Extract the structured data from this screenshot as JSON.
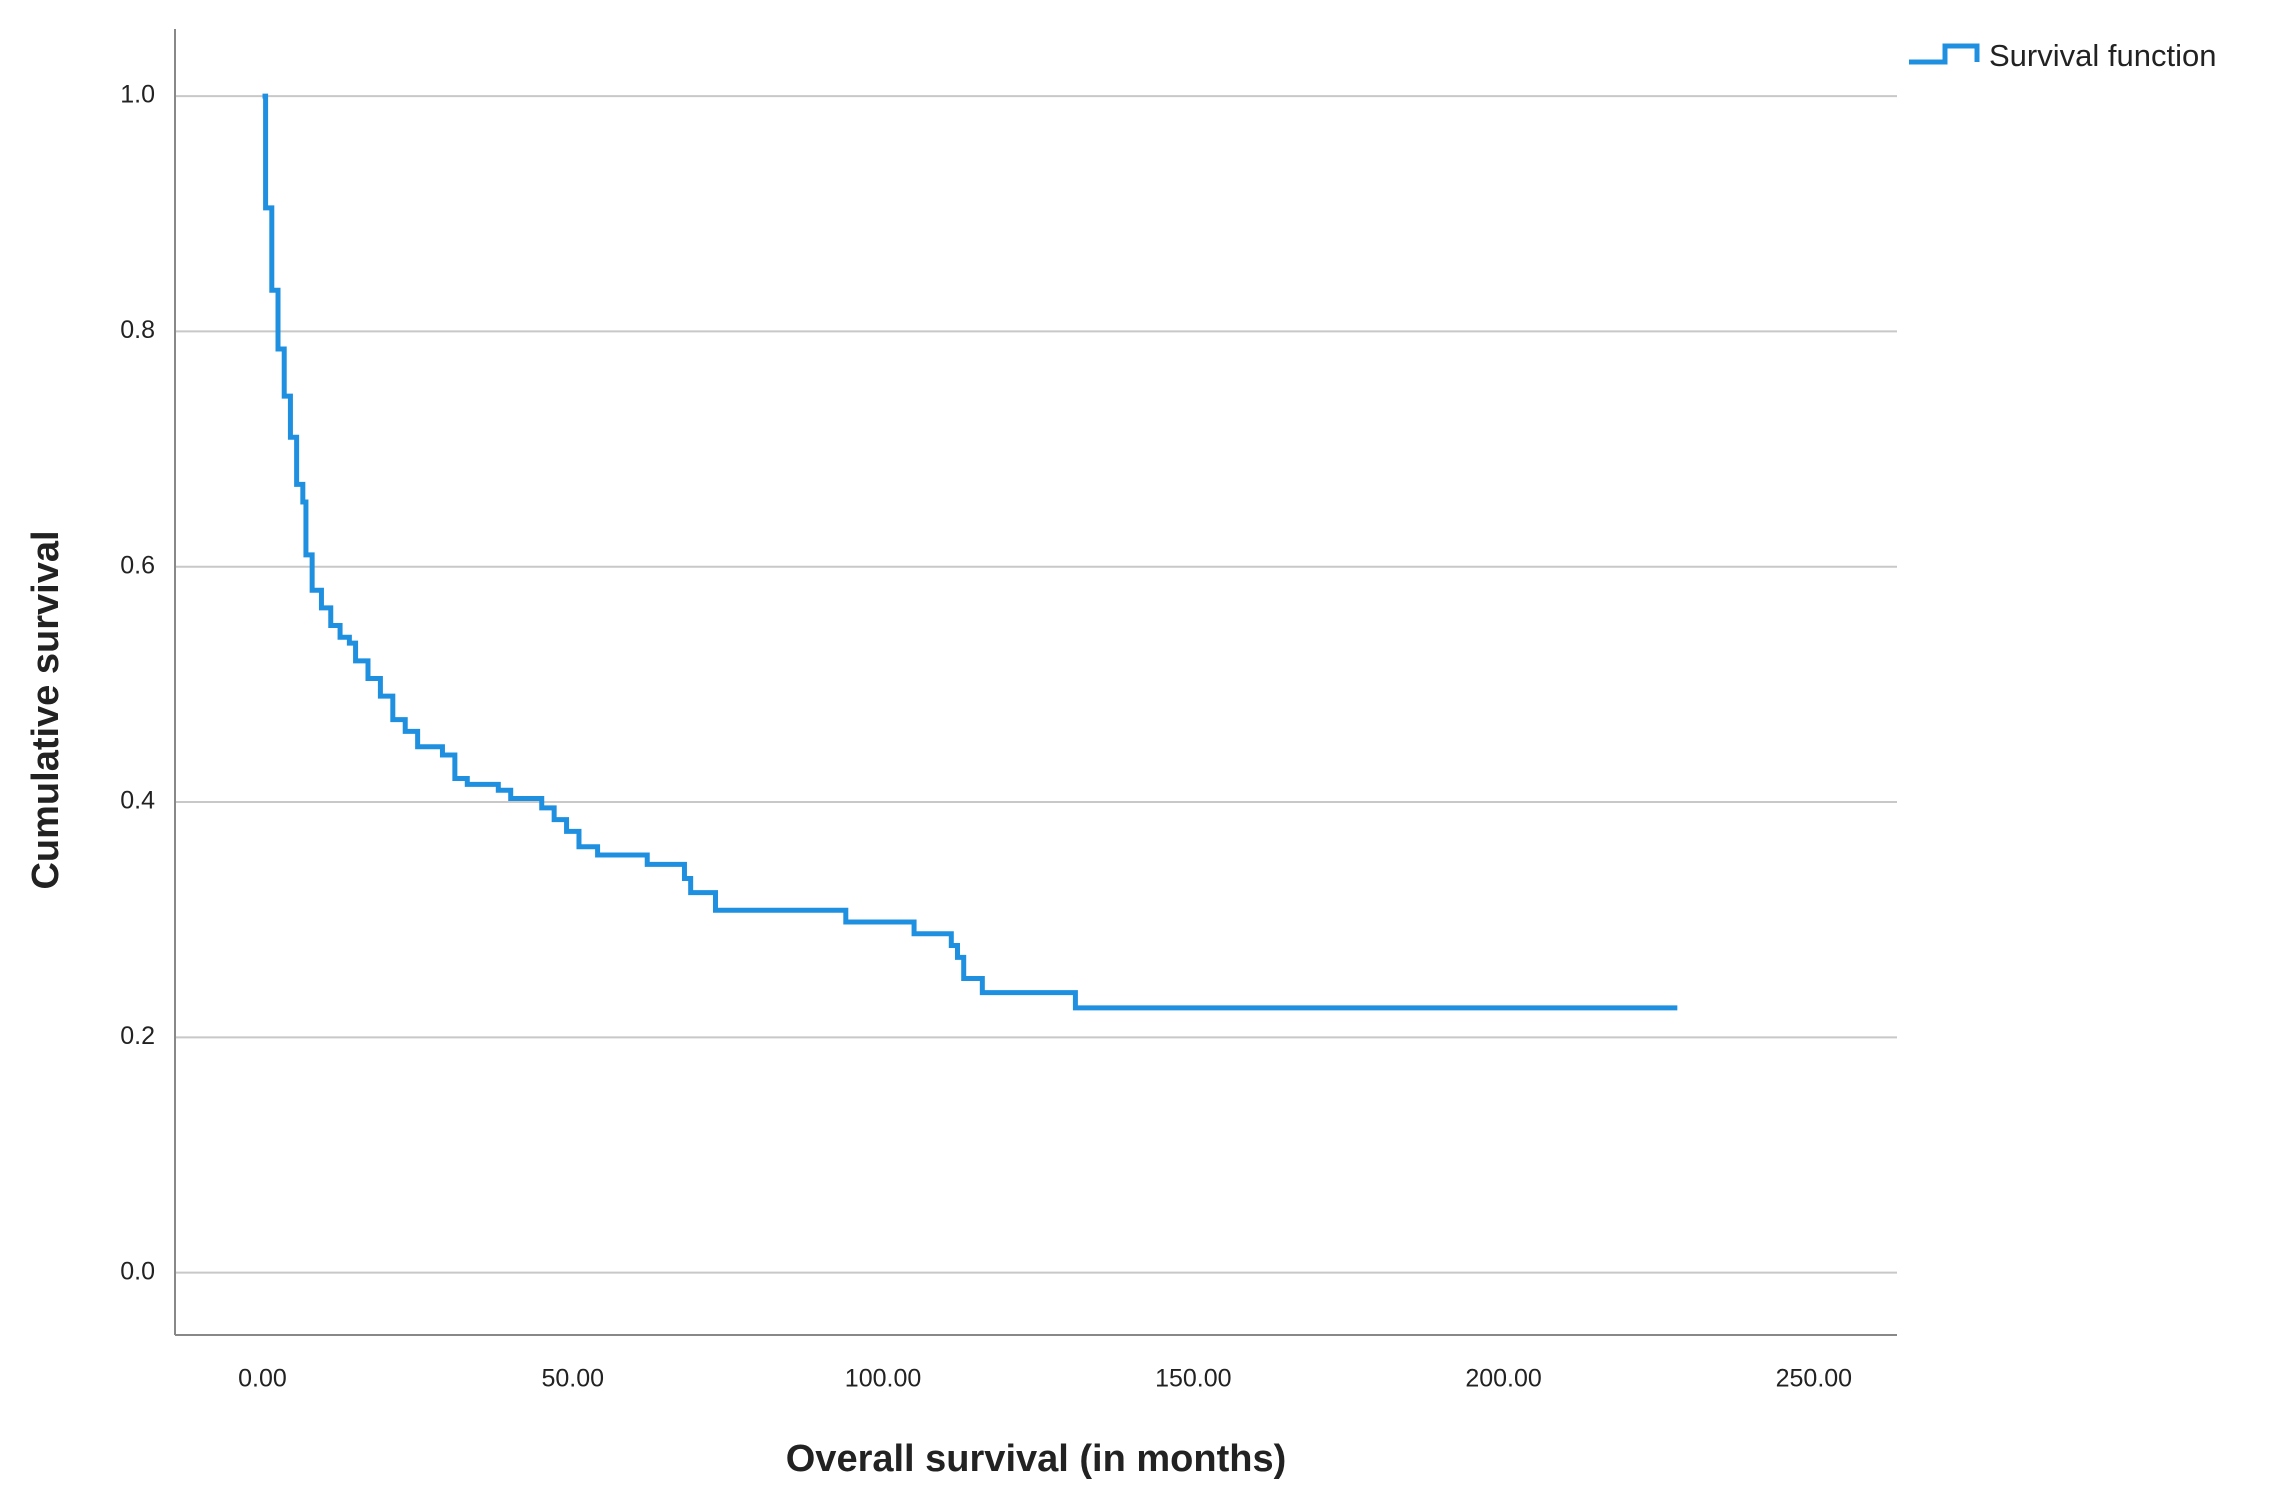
{
  "chart_data": {
    "type": "step",
    "x_label": "Overall survival (in months)",
    "y_label": "Cumulative survival",
    "series": [
      {
        "name": "Survival function",
        "color": "#1f90e0",
        "x": [
          0,
          0.5,
          1.5,
          2.5,
          3.5,
          4.5,
          5.5,
          6.5,
          7,
          8,
          9.5,
          11,
          12.5,
          14,
          15,
          17,
          19,
          21,
          23,
          25,
          29,
          31,
          33,
          38,
          40,
          45,
          47,
          49,
          51,
          54,
          62,
          68,
          69,
          73,
          94,
          105,
          111,
          112,
          113,
          116,
          131,
          228
        ],
        "values": [
          1.0,
          0.905,
          0.835,
          0.785,
          0.745,
          0.71,
          0.67,
          0.655,
          0.61,
          0.58,
          0.565,
          0.55,
          0.54,
          0.535,
          0.52,
          0.505,
          0.49,
          0.47,
          0.46,
          0.447,
          0.44,
          0.42,
          0.415,
          0.41,
          0.403,
          0.395,
          0.385,
          0.375,
          0.362,
          0.355,
          0.347,
          0.335,
          0.323,
          0.308,
          0.298,
          0.288,
          0.278,
          0.268,
          0.25,
          0.238,
          0.225,
          0.225
        ]
      }
    ],
    "xlim": [
      -14.1,
      263.4
    ],
    "ylim": [
      -0.053,
      1.057
    ],
    "xticks": [
      {
        "value": 0,
        "label": "0.00"
      },
      {
        "value": 50,
        "label": "50.00"
      },
      {
        "value": 100,
        "label": "100.00"
      },
      {
        "value": 150,
        "label": "150.00"
      },
      {
        "value": 200,
        "label": "200.00"
      },
      {
        "value": 250,
        "label": "250.00"
      }
    ],
    "yticks": [
      {
        "value": 0,
        "label": "0.0"
      },
      0.2,
      0.4,
      0.6,
      0.8,
      {
        "value": 1,
        "label": "1.0"
      }
    ],
    "grid": true,
    "legend": "top-right"
  }
}
